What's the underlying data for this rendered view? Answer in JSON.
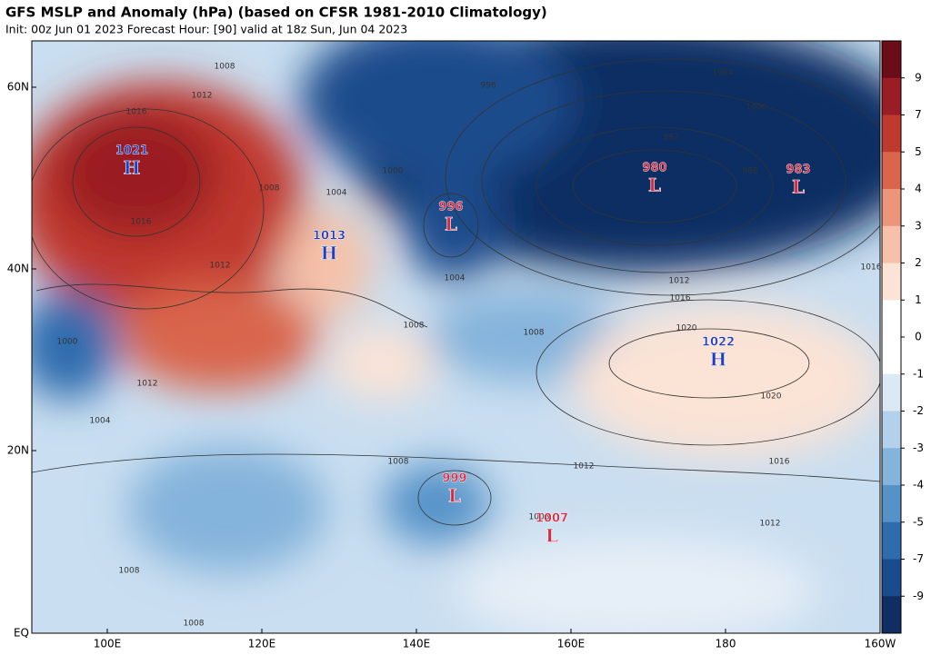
{
  "header": {
    "title": "GFS MSLP and Anomaly (hPa) (based on CFSR 1981-2010 Climatology)",
    "subtitle": "Init: 00z Jun 01 2023   Forecast Hour: [90]   valid at 18z Sun, Jun 04 2023"
  },
  "map": {
    "lat_labels": [
      "60N",
      "40N",
      "20N",
      "EQ"
    ],
    "lon_labels": [
      "100E",
      "120E",
      "140E",
      "160E",
      "180",
      "160W"
    ],
    "centers": [
      {
        "type": "H",
        "value": "1021"
      },
      {
        "type": "H",
        "value": "1013"
      },
      {
        "type": "L",
        "value": "996"
      },
      {
        "type": "L",
        "value": "980"
      },
      {
        "type": "L",
        "value": "983"
      },
      {
        "type": "H",
        "value": "1022"
      },
      {
        "type": "L",
        "value": "999"
      },
      {
        "type": "L",
        "value": "1007"
      }
    ],
    "isobar_labels": [
      "1008",
      "1012",
      "1016",
      "1016",
      "1012",
      "1008",
      "1004",
      "1000",
      "996",
      "1004",
      "1000",
      "992",
      "988",
      "1012",
      "1016",
      "1008",
      "1020",
      "1020",
      "1008",
      "1012",
      "1016",
      "1012",
      "1008",
      "1008",
      "1008",
      "1008",
      "1004",
      "1012",
      "1000",
      "1004",
      "1016"
    ]
  },
  "colorbar": {
    "labels": [
      "9",
      "7",
      "5",
      "4",
      "3",
      "2",
      "1",
      "0",
      "-1",
      "-2",
      "-3",
      "-4",
      "-5",
      "-7",
      "-9"
    ],
    "colors": [
      "#6b0d18",
      "#9a1c24",
      "#c0392f",
      "#d9654c",
      "#ec957a",
      "#f6c1a8",
      "#fbe3d6",
      "#ffffff",
      "#ffffff",
      "#dbe9f5",
      "#b3d1ea",
      "#84b3db",
      "#5592c8",
      "#2f6cae",
      "#1a4b8c",
      "#0f2f63"
    ]
  }
}
